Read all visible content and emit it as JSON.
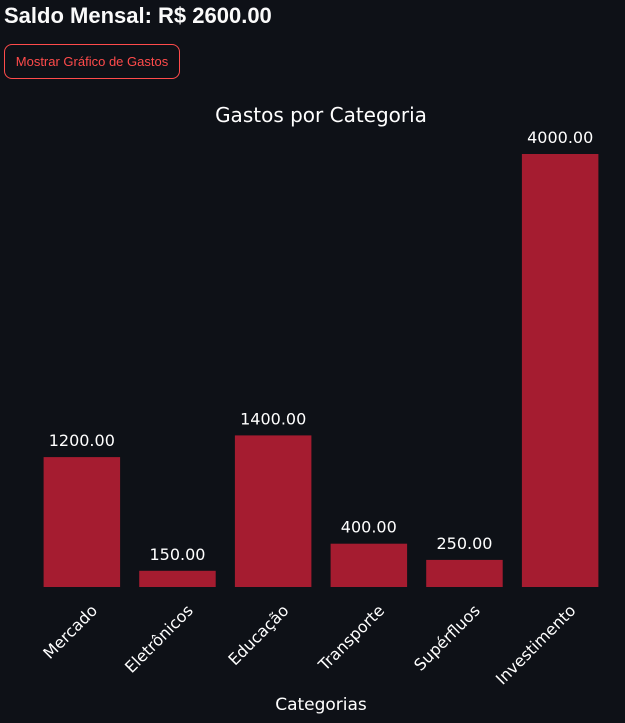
{
  "header": {
    "balance_text": "Saldo Mensal: R$ 2600.00"
  },
  "toolbar": {
    "show_chart_label": "Mostrar Gráfico de Gastos"
  },
  "colors": {
    "background": "#0e1117",
    "bar": "#a51c30",
    "text": "#ffffff",
    "button_accent": "#ff4b4b"
  },
  "chart_data": {
    "type": "bar",
    "title": "Gastos por Categoria",
    "xlabel": "Categorias",
    "ylabel": "",
    "categories": [
      "Mercado",
      "Eletrônicos",
      "Educação",
      "Transporte",
      "Supérfluos",
      "Investimento"
    ],
    "values": [
      1200.0,
      150.0,
      1400.0,
      400.0,
      250.0,
      4000.0
    ],
    "value_labels": [
      "1200.00",
      "150.00",
      "1400.00",
      "400.00",
      "250.00",
      "4000.00"
    ],
    "ylim": [
      0,
      4200
    ],
    "grid": false,
    "legend": "none"
  }
}
